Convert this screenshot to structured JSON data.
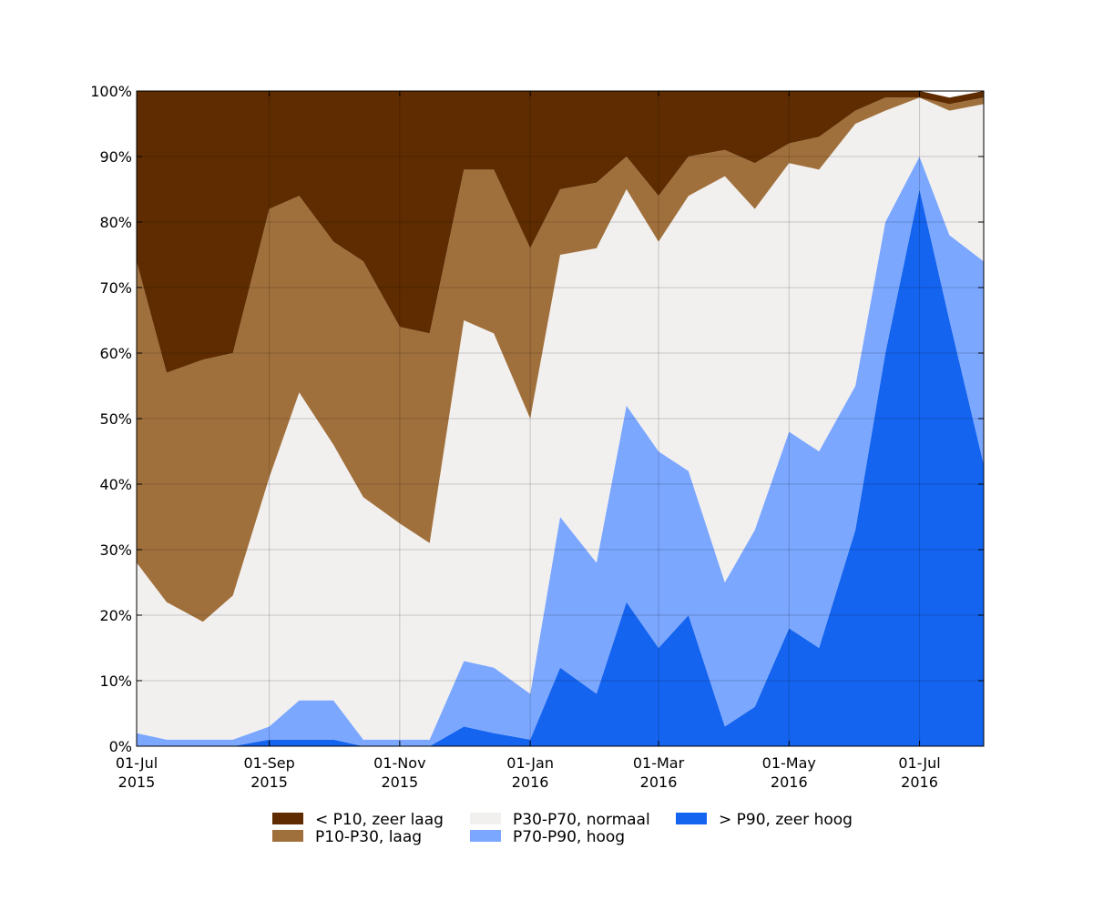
{
  "chart_data": {
    "type": "area",
    "stacked": true,
    "x": [
      "2015-07-01",
      "2015-07-15",
      "2015-08-01",
      "2015-08-15",
      "2015-09-01",
      "2015-09-15",
      "2015-10-01",
      "2015-10-15",
      "2015-11-01",
      "2015-11-15",
      "2015-12-01",
      "2015-12-15",
      "2016-01-01",
      "2016-01-15",
      "2016-02-01",
      "2016-02-15",
      "2016-03-01",
      "2016-03-15",
      "2016-04-01",
      "2016-04-15",
      "2016-05-01",
      "2016-05-15",
      "2016-06-01",
      "2016-06-15",
      "2016-07-01",
      "2016-07-15",
      "2016-07-31"
    ],
    "series": [
      {
        "name": "> P90, zeer hoog",
        "color": "#1464f0",
        "values": [
          0,
          0,
          0,
          0,
          1,
          1,
          1,
          0,
          0,
          0,
          3,
          2,
          1,
          12,
          8,
          22,
          15,
          20,
          3,
          6,
          18,
          15,
          33,
          60,
          85,
          65,
          43
        ]
      },
      {
        "name": "P70-P90, hoog",
        "color": "#7ba7ff",
        "values": [
          2,
          1,
          1,
          1,
          2,
          6,
          6,
          1,
          1,
          1,
          10,
          10,
          7,
          23,
          20,
          30,
          30,
          22,
          22,
          27,
          30,
          30,
          22,
          20,
          5,
          13,
          31
        ]
      },
      {
        "name": "P30-P70, normaal",
        "color": "#f2f0ef",
        "values": [
          26,
          21,
          18,
          22,
          38,
          47,
          39,
          37,
          33,
          30,
          52,
          51,
          42,
          40,
          48,
          33,
          32,
          42,
          62,
          49,
          41,
          43,
          40,
          17,
          9,
          19,
          24
        ]
      },
      {
        "name": "P10-P30, laag",
        "color": "#a0703c",
        "values": [
          46,
          35,
          40,
          37,
          41,
          30,
          31,
          36,
          30,
          32,
          23,
          25,
          26,
          10,
          10,
          5,
          7,
          6,
          4,
          7,
          3,
          5,
          2,
          2,
          0,
          1,
          1
        ]
      },
      {
        "name": "< P10, zeer laag",
        "color": "#5e2c00",
        "values": [
          26,
          43,
          41,
          40,
          18,
          16,
          23,
          26,
          36,
          37,
          12,
          12,
          24,
          15,
          14,
          10,
          16,
          10,
          9,
          11,
          8,
          7,
          3,
          1,
          1,
          1,
          1
        ]
      }
    ],
    "xtick_labels": [
      "01-Jul\n2015",
      "01-Sep\n2015",
      "01-Nov\n2015",
      "01-Jan\n2016",
      "01-Mar\n2016",
      "01-May\n2016",
      "01-Jul\n2016"
    ],
    "xtick_dates": [
      "2015-07-01",
      "2015-09-01",
      "2015-11-01",
      "2016-01-01",
      "2016-03-01",
      "2016-05-01",
      "2016-07-01"
    ],
    "ytick_labels": [
      "0%",
      "10%",
      "20%",
      "30%",
      "40%",
      "50%",
      "60%",
      "70%",
      "80%",
      "90%",
      "100%"
    ],
    "ytick_values": [
      0,
      10,
      20,
      30,
      40,
      50,
      60,
      70,
      80,
      90,
      100
    ],
    "xlim": [
      "2015-07-01",
      "2016-07-31"
    ],
    "ylim": [
      0,
      100
    ],
    "grid": true,
    "legend_placement": "bottom-center",
    "legend_order": [
      "< P10, zeer laag",
      "P10-P30, laag",
      "P30-P70, normaal",
      "P70-P90, hoog",
      "> P90, zeer hoog"
    ],
    "title": "",
    "xlabel": "",
    "ylabel": ""
  }
}
